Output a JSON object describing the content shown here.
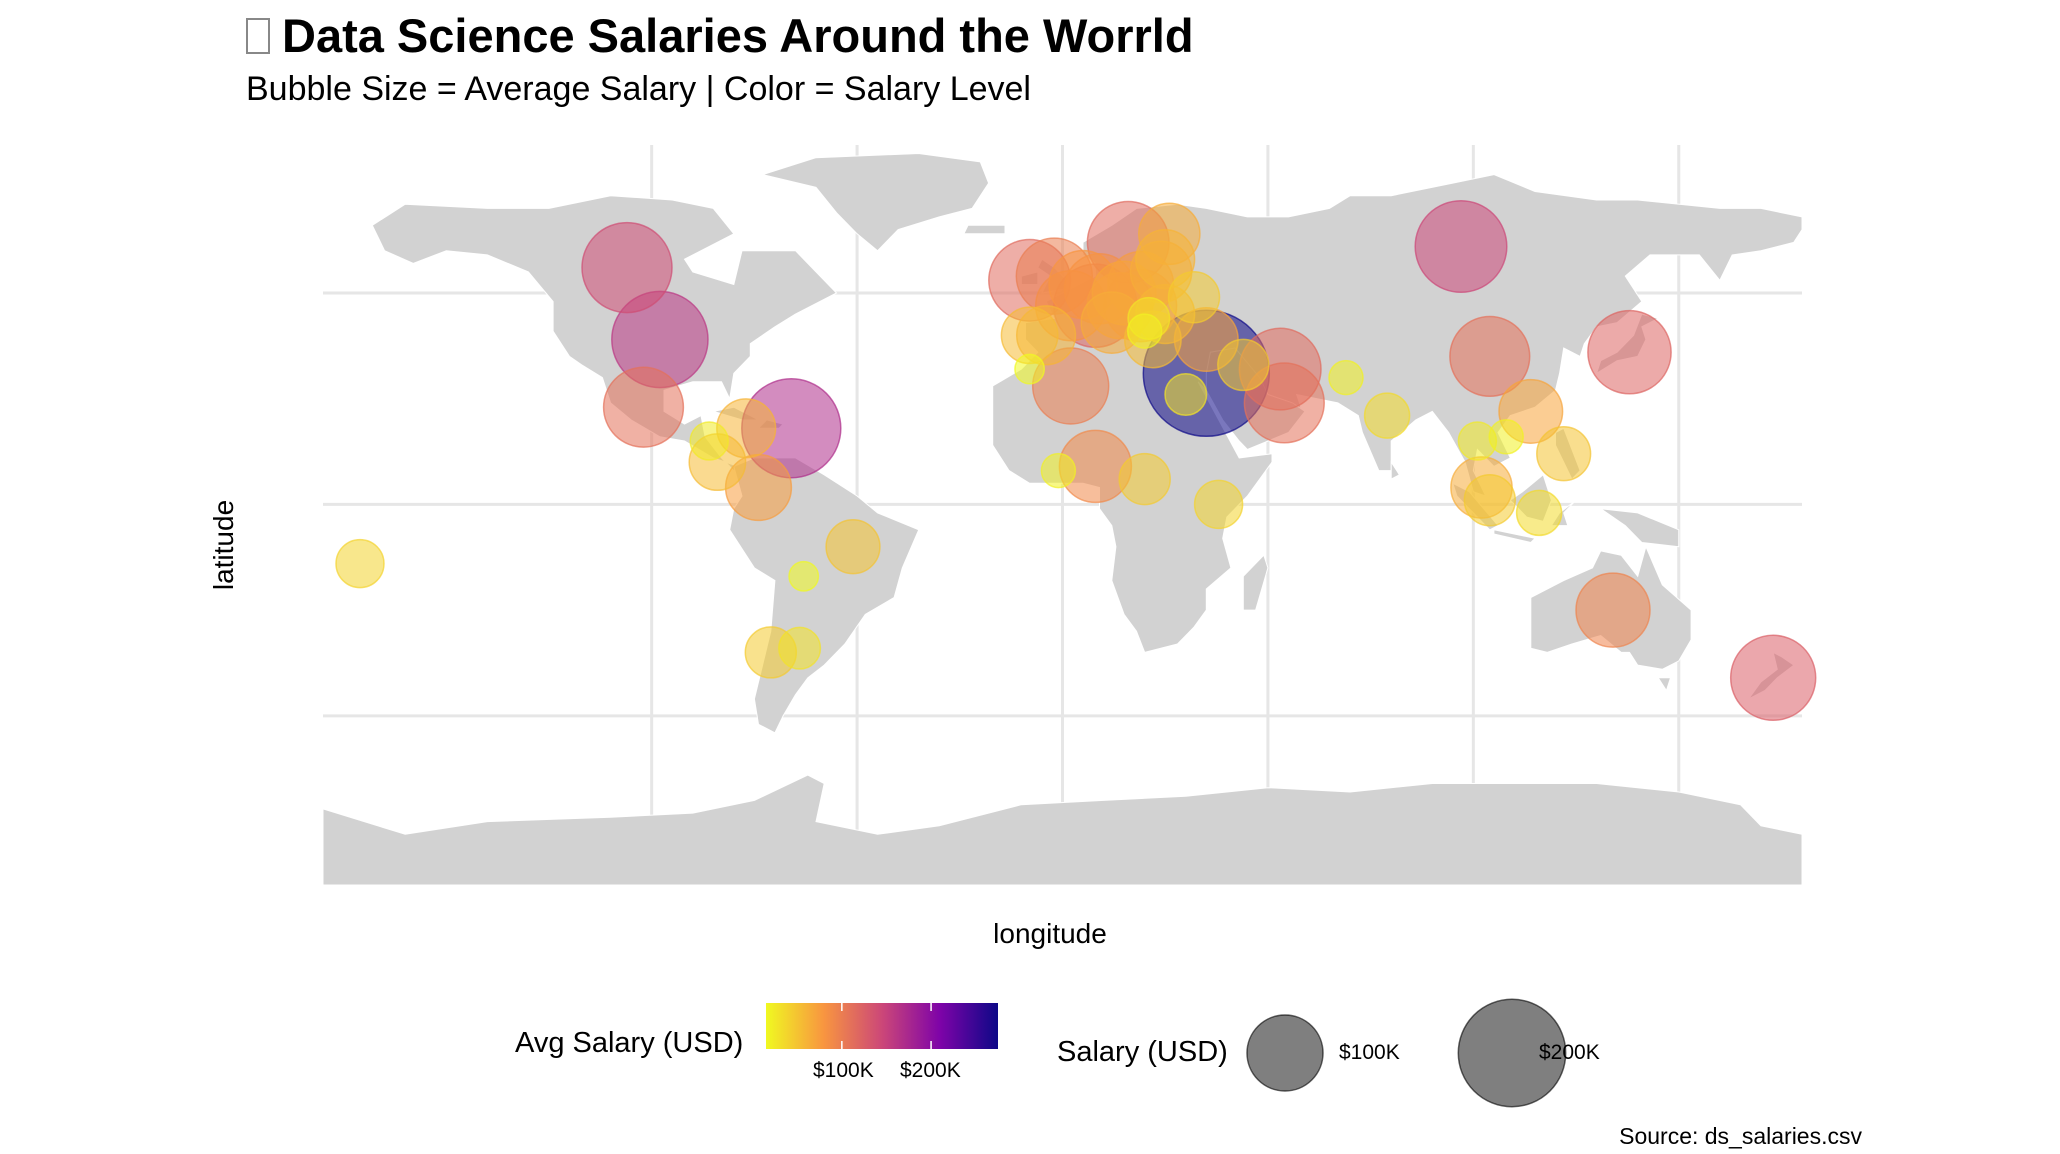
{
  "header": {
    "title": "Data Science Salaries Around the Worrld",
    "subtitle": "Bubble Size = Average Salary | Color = Salary Level"
  },
  "caption": "Source: ds_salaries.csv",
  "colors": {
    "land": "#d2d2d2",
    "grid": "#e6e6e6",
    "palette": [
      "#f0f921",
      "#f89540",
      "#cc4778",
      "#7e03a8",
      "#0d0887"
    ]
  },
  "chart_data": {
    "type": "scatter",
    "title": "Data Science Salaries Around the Worrld",
    "subtitle": "Bubble Size = Average Salary | Color = Salary Level",
    "xlabel": "longitude",
    "ylabel": "latitude",
    "xlim": [
      -180,
      180
    ],
    "ylim": [
      -90,
      85
    ],
    "grid": true,
    "legend_position": "bottom",
    "color_legend": {
      "title": "Avg Salary (USD)",
      "ticks": [
        100000,
        200000
      ],
      "tick_labels": [
        "$100K",
        "$200K"
      ],
      "range": [
        15000,
        275000
      ]
    },
    "size_legend": {
      "title": "Salary (USD)",
      "values": [
        100000,
        200000
      ],
      "labels": [
        "$100K",
        "$200K"
      ]
    },
    "points": [
      {
        "lon": -106,
        "lat": 56,
        "salary": 140000
      },
      {
        "lon": -98,
        "lat": 39,
        "salary": 160000
      },
      {
        "lon": -102,
        "lat": 23,
        "salary": 110000
      },
      {
        "lon": -86,
        "lat": 15,
        "salary": 25000
      },
      {
        "lon": -84,
        "lat": 10,
        "salary": 55000
      },
      {
        "lon": -77,
        "lat": 18,
        "salary": 60000
      },
      {
        "lon": -66,
        "lat": 18,
        "salary": 170000
      },
      {
        "lon": -74,
        "lat": 4,
        "salary": 75000
      },
      {
        "lon": -51,
        "lat": -10,
        "salary": 50000
      },
      {
        "lon": -63,
        "lat": -17,
        "salary": 15000
      },
      {
        "lon": -71,
        "lat": -35,
        "salary": 45000
      },
      {
        "lon": -64,
        "lat": -34,
        "salary": 30000
      },
      {
        "lon": -171,
        "lat": -14,
        "salary": 40000
      },
      {
        "lon": -8,
        "lat": 53,
        "salary": 115000
      },
      {
        "lon": -2,
        "lat": 54,
        "salary": 100000
      },
      {
        "lon": -8,
        "lat": 40,
        "salary": 55000
      },
      {
        "lon": -4,
        "lat": 40,
        "salary": 60000
      },
      {
        "lon": 2,
        "lat": 47,
        "salary": 85000
      },
      {
        "lon": 5,
        "lat": 52,
        "salary": 80000
      },
      {
        "lon": 9,
        "lat": 51,
        "salary": 85000
      },
      {
        "lon": 8,
        "lat": 47,
        "salary": 120000
      },
      {
        "lon": 14,
        "lat": 47,
        "salary": 75000
      },
      {
        "lon": 12,
        "lat": 43,
        "salary": 65000
      },
      {
        "lon": 15,
        "lat": 50,
        "salary": 70000
      },
      {
        "lon": 19,
        "lat": 52,
        "salary": 75000
      },
      {
        "lon": 16,
        "lat": 62,
        "salary": 115000
      },
      {
        "lon": 26,
        "lat": 64,
        "salary": 65000
      },
      {
        "lon": 25,
        "lat": 58,
        "salary": 60000
      },
      {
        "lon": 24,
        "lat": 55,
        "salary": 65000
      },
      {
        "lon": 19,
        "lat": 47,
        "salary": 90000
      },
      {
        "lon": 25,
        "lat": 45,
        "salary": 60000
      },
      {
        "lon": 21,
        "lat": 44,
        "salary": 30000
      },
      {
        "lon": 20,
        "lat": 41,
        "salary": 20000
      },
      {
        "lon": 22,
        "lat": 39,
        "salary": 55000
      },
      {
        "lon": 32,
        "lat": 49,
        "salary": 45000
      },
      {
        "lon": 35,
        "lat": 39,
        "salary": 70000
      },
      {
        "lon": 35,
        "lat": 31,
        "salary": 275000
      },
      {
        "lon": 30,
        "lat": 26,
        "salary": 30000
      },
      {
        "lon": 44,
        "lat": 33,
        "salary": 45000
      },
      {
        "lon": 53,
        "lat": 32,
        "salary": 115000
      },
      {
        "lon": 54,
        "lat": 24,
        "salary": 110000
      },
      {
        "lon": 2,
        "lat": 28,
        "salary": 100000
      },
      {
        "lon": -8,
        "lat": 32,
        "salary": 15000
      },
      {
        "lon": -1,
        "lat": 8,
        "salary": 20000
      },
      {
        "lon": 8,
        "lat": 9,
        "salary": 90000
      },
      {
        "lon": 20,
        "lat": 6,
        "salary": 45000
      },
      {
        "lon": 38,
        "lat": 0,
        "salary": 40000
      },
      {
        "lon": 69,
        "lat": 30,
        "salary": 20000
      },
      {
        "lon": 79,
        "lat": 21,
        "salary": 35000
      },
      {
        "lon": 97,
        "lat": 61,
        "salary": 145000
      },
      {
        "lon": 104,
        "lat": 35,
        "salary": 110000
      },
      {
        "lon": 138,
        "lat": 36,
        "salary": 120000
      },
      {
        "lon": 114,
        "lat": 22,
        "salary": 70000
      },
      {
        "lon": 101,
        "lat": 15,
        "salary": 25000
      },
      {
        "lon": 108,
        "lat": 16,
        "salary": 20000
      },
      {
        "lon": 122,
        "lat": 12,
        "salary": 50000
      },
      {
        "lon": 102,
        "lat": 4,
        "salary": 65000
      },
      {
        "lon": 104,
        "lat": 1,
        "salary": 45000
      },
      {
        "lon": 116,
        "lat": -2,
        "salary": 35000
      },
      {
        "lon": 134,
        "lat": -25,
        "salary": 95000
      },
      {
        "lon": 173,
        "lat": -41,
        "salary": 125000
      }
    ]
  }
}
